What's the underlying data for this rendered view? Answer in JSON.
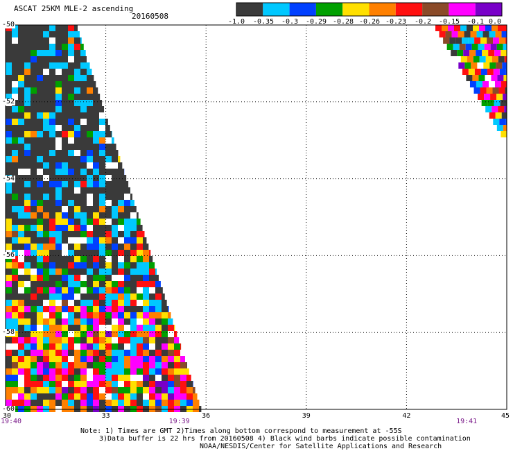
{
  "header": {
    "title": "ASCAT 25KM MLE-2 ascending",
    "date": "20160508"
  },
  "colorbar": {
    "colors": [
      "#3a3a3a",
      "#00c8ff",
      "#0040ff",
      "#00a000",
      "#ffe000",
      "#ff8000",
      "#ff1010",
      "#8a4a28",
      "#ff00ff",
      "#7800c8"
    ],
    "labels": [
      "-1.0",
      "-0.35",
      "-0.3",
      "-0.29",
      "-0.28",
      "-0.26",
      "-0.23",
      "-0.2",
      "-0.15",
      "-0.1",
      "0.0"
    ]
  },
  "map": {
    "lat_labels": [
      {
        "value": -50,
        "text": "-50"
      },
      {
        "value": -52,
        "text": "-52"
      },
      {
        "value": -54,
        "text": "-54"
      },
      {
        "value": -56,
        "text": "-56"
      },
      {
        "value": -58,
        "text": "-58"
      },
      {
        "value": -60,
        "text": "-60"
      }
    ],
    "lon_labels": [
      {
        "value": 30,
        "text": "30"
      },
      {
        "value": 33,
        "text": "33"
      },
      {
        "value": 36,
        "text": "36"
      },
      {
        "value": 39,
        "text": "39"
      },
      {
        "value": 42,
        "text": "42"
      },
      {
        "value": 45,
        "text": "45"
      }
    ],
    "time_labels": [
      {
        "lon": 30,
        "text": "19:40"
      },
      {
        "lon": 35.2,
        "text": "19:39"
      },
      {
        "lon": 43.8,
        "text": "19:41"
      }
    ],
    "lat_range": [
      -60,
      -50
    ],
    "lon_range": [
      30,
      45
    ],
    "grid": "dotted"
  },
  "notes": {
    "line1": "Note: 1) Times are GMT 2)Times along bottom correspond to measurement at -55S",
    "line2": "3)Data buffer is 22 hrs from 20160508 4) Black wind barbs indicate possible contamination",
    "line3": "NOAA/NESDIS/Center for Satellite Applications and Research"
  }
}
